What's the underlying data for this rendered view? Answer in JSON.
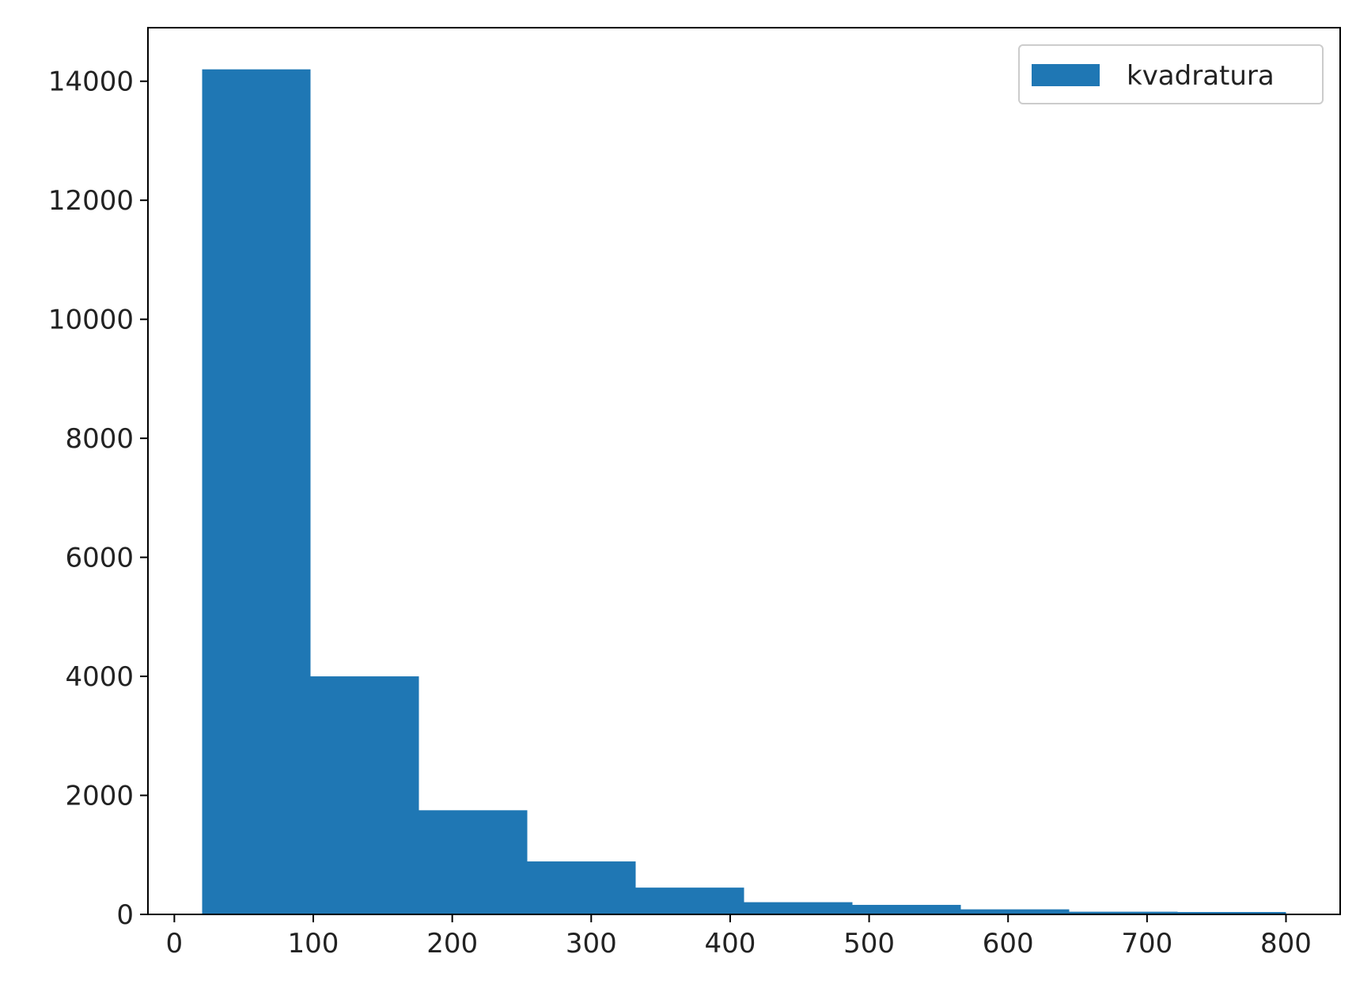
{
  "chart_data": {
    "type": "histogram",
    "bins": [
      20,
      98,
      176,
      254,
      332,
      410,
      488,
      566,
      644,
      722,
      800
    ],
    "series": [
      {
        "name": "kvadratura",
        "color": "#1f77b4",
        "values": [
          14200,
          4000,
          1750,
          890,
          450,
          205,
          160,
          85,
          45,
          40
        ]
      }
    ],
    "xlim": [
      -19,
      839
    ],
    "xticks": [
      0,
      100,
      200,
      300,
      400,
      500,
      600,
      700,
      800
    ],
    "ylim": [
      0,
      14900
    ],
    "yticks": [
      0,
      2000,
      4000,
      6000,
      8000,
      10000,
      12000,
      14000
    ],
    "legend": "upper right"
  }
}
